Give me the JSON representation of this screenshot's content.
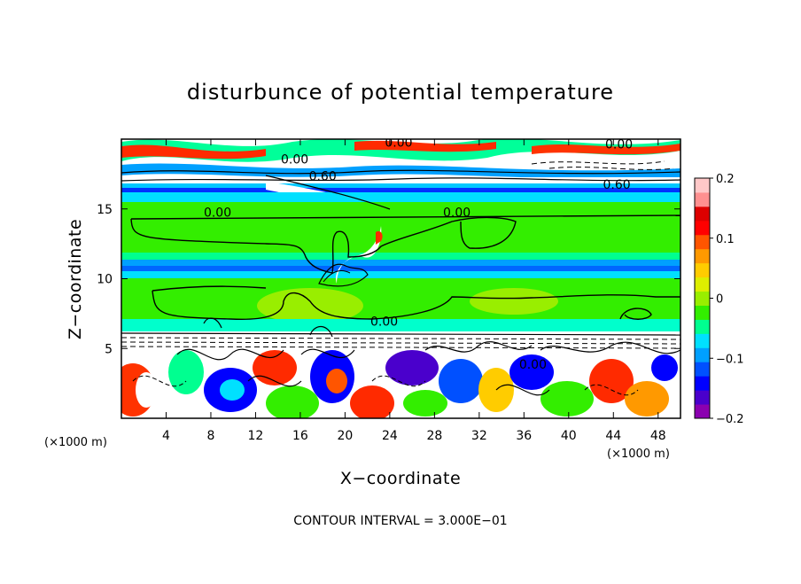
{
  "chart_data": {
    "type": "heatmap",
    "title": "disturbunce of potential temperature",
    "xlabel": "X−coordinate",
    "ylabel": "Z−coordinate",
    "x_unit_label": "(×1000 m)",
    "y_unit_label": "(×1000 m)",
    "xlim": [
      0,
      50
    ],
    "ylim": [
      0,
      20
    ],
    "x_ticks": [
      4,
      8,
      12,
      16,
      20,
      24,
      28,
      32,
      36,
      40,
      44,
      48
    ],
    "y_ticks": [
      5,
      10,
      15
    ],
    "colorbar": {
      "range": [
        -0.2,
        0.2
      ],
      "ticks": [
        {
          "value": 0.2,
          "label": "0.2"
        },
        {
          "value": 0.1,
          "label": "0.1"
        },
        {
          "value": 0,
          "label": "0"
        },
        {
          "value": -0.1,
          "label": "−0.1"
        },
        {
          "value": -0.2,
          "label": "−0.2"
        }
      ],
      "colors": [
        "#8b00b0",
        "#4a00cc",
        "#0000ff",
        "#0050ff",
        "#00a0ff",
        "#00e0ff",
        "#00ff90",
        "#33ee00",
        "#99ee00",
        "#ddee00",
        "#ffcc00",
        "#ff9900",
        "#ff5500",
        "#ff0000",
        "#dd0000",
        "#ff9090",
        "#ffc8c8"
      ]
    },
    "contour_labels": [
      {
        "text": "0.00",
        "x": 24.8,
        "z": 19.7
      },
      {
        "text": "0.00",
        "x": 15.5,
        "z": 18.5
      },
      {
        "text": "0.00",
        "x": 44.5,
        "z": 19.6
      },
      {
        "text": "0.60",
        "x": 18.0,
        "z": 17.3
      },
      {
        "text": "0.60",
        "x": 44.3,
        "z": 16.7
      },
      {
        "text": "0.00",
        "x": 8.6,
        "z": 14.7
      },
      {
        "text": "0.00",
        "x": 30.0,
        "z": 14.7
      },
      {
        "text": "0.00",
        "x": 23.5,
        "z": 6.9
      },
      {
        "text": "0.00",
        "x": 36.8,
        "z": 3.8
      }
    ],
    "annotation": "CONTOUR INTERVAL = 3.000E−01"
  }
}
